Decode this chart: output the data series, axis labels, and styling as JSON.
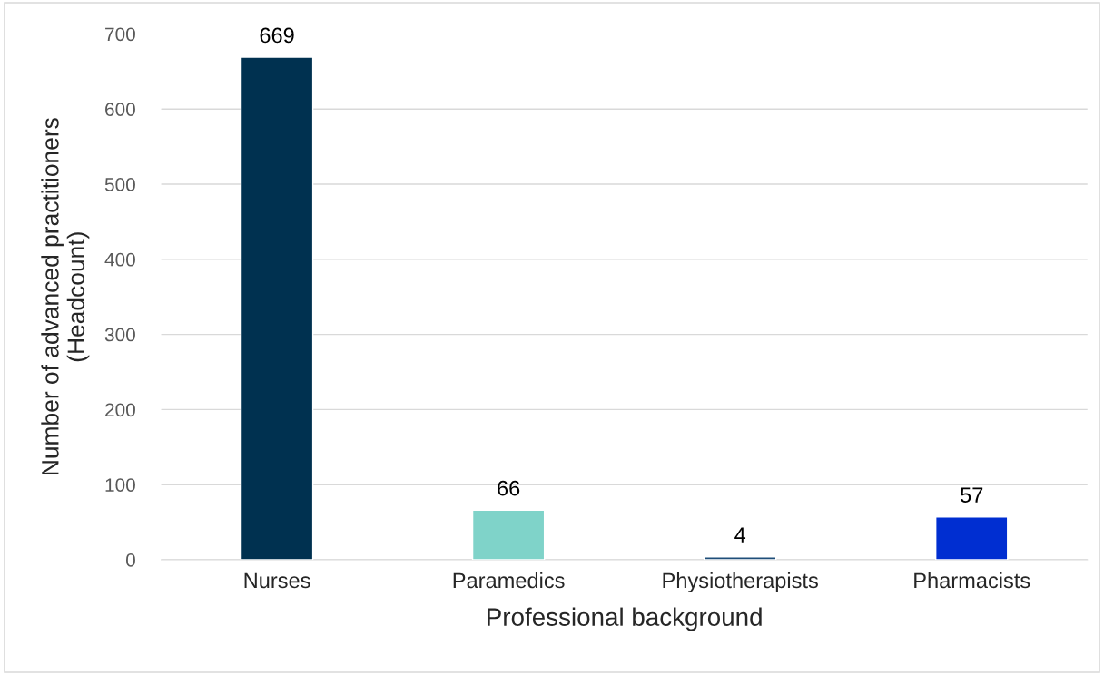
{
  "chart_data": {
    "type": "bar",
    "xlabel": "Professional background",
    "ylabel": "Number of advanced practitioners\n(Headcount)",
    "categories": [
      "Nurses",
      "Paramedics",
      "Physiotherapists",
      "Pharmacists"
    ],
    "values": [
      669,
      66,
      4,
      57
    ],
    "colors": [
      "#003150",
      "#7fd3c9",
      "#1f4e79",
      "#002ed1"
    ],
    "ylim": [
      0,
      700
    ],
    "yticks": [
      0,
      100,
      200,
      300,
      400,
      500,
      600,
      700
    ],
    "grid": "y",
    "data_labels": true
  }
}
